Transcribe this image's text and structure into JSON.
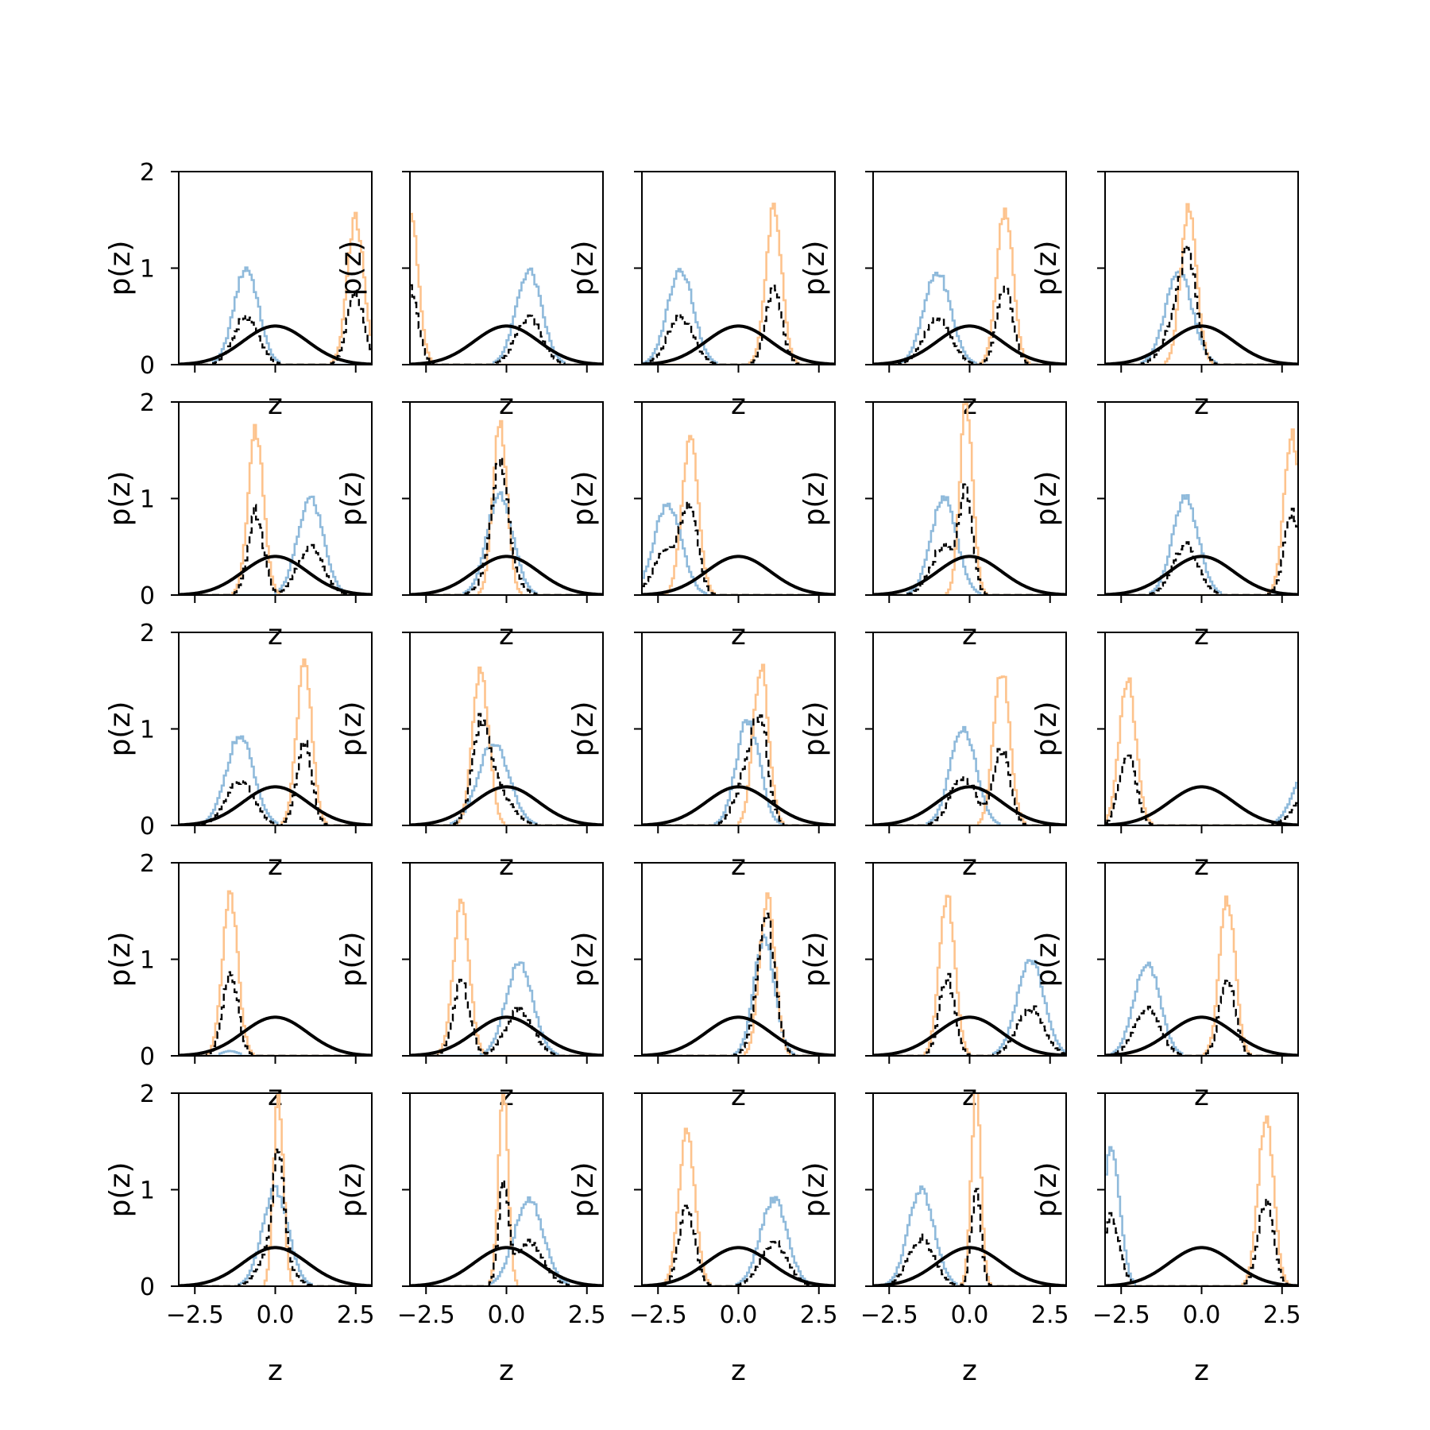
{
  "chart_data": {
    "type": "histogram-grid",
    "rows": 5,
    "cols": 5,
    "xlabel": "z",
    "ylabel": "p(z)",
    "xlim": [
      -3.0,
      3.0
    ],
    "ylim": [
      0,
      2
    ],
    "xticks": [
      -2.5,
      0.0,
      2.5
    ],
    "xtick_labels": [
      "−2.5",
      "0.0",
      "2.5"
    ],
    "yticks": [
      0,
      1,
      2
    ],
    "ytick_labels": [
      "0",
      "1",
      "2"
    ],
    "grid": false,
    "legend": "none",
    "prior_curve": {
      "type": "standard-normal",
      "peak": 0.4,
      "color": "#000000"
    },
    "series_colors": {
      "blue": "#8fbadb",
      "orange": "#fdc38d",
      "mixture": "#000000"
    },
    "panels": [
      {
        "blue": [
          -0.9,
          0.38,
          1.0
        ],
        "orange": [
          2.5,
          0.26,
          1.5
        ]
      },
      {
        "blue": [
          0.7,
          0.4,
          0.97
        ],
        "orange": [
          -3.0,
          0.25,
          1.6
        ]
      },
      {
        "blue": [
          -1.8,
          0.4,
          1.0
        ],
        "orange": [
          1.1,
          0.25,
          1.6
        ]
      },
      {
        "blue": [
          -1.0,
          0.42,
          0.95
        ],
        "orange": [
          1.1,
          0.25,
          1.6
        ]
      },
      {
        "blue": [
          -0.7,
          0.42,
          0.95
        ],
        "orange": [
          -0.4,
          0.25,
          1.6
        ]
      },
      {
        "blue": [
          1.1,
          0.4,
          1.0
        ],
        "orange": [
          -0.6,
          0.24,
          1.7
        ]
      },
      {
        "blue": [
          -0.2,
          0.4,
          1.05
        ],
        "orange": [
          -0.2,
          0.22,
          1.8
        ]
      },
      {
        "blue": [
          -2.2,
          0.42,
          0.95
        ],
        "orange": [
          -1.5,
          0.25,
          1.65
        ]
      },
      {
        "blue": [
          -0.8,
          0.4,
          1.0
        ],
        "orange": [
          -0.1,
          0.2,
          2.0
        ]
      },
      {
        "blue": [
          -0.5,
          0.4,
          1.0
        ],
        "orange": [
          2.8,
          0.24,
          1.65
        ]
      },
      {
        "blue": [
          -1.1,
          0.43,
          0.92
        ],
        "orange": [
          0.9,
          0.24,
          1.65
        ]
      },
      {
        "blue": [
          -0.4,
          0.48,
          0.85
        ],
        "orange": [
          -0.8,
          0.25,
          1.6
        ]
      },
      {
        "blue": [
          0.3,
          0.36,
          1.1
        ],
        "orange": [
          0.7,
          0.24,
          1.65
        ]
      },
      {
        "blue": [
          -0.2,
          0.4,
          1.02
        ],
        "orange": [
          1.0,
          0.25,
          1.62
        ]
      },
      {
        "blue": [
          3.2,
          0.4,
          0.5
        ],
        "orange": [
          -2.3,
          0.26,
          1.5
        ]
      },
      {
        "blue": [
          -1.4,
          0.25,
          0.05
        ],
        "orange": [
          -1.4,
          0.24,
          1.65
        ]
      },
      {
        "blue": [
          0.4,
          0.42,
          0.95
        ],
        "orange": [
          -1.4,
          0.25,
          1.58
        ]
      },
      {
        "blue": [
          0.8,
          0.32,
          1.22
        ],
        "orange": [
          0.9,
          0.24,
          1.65
        ]
      },
      {
        "blue": [
          1.9,
          0.42,
          1.0
        ],
        "orange": [
          -0.7,
          0.24,
          1.65
        ]
      },
      {
        "blue": [
          -1.7,
          0.4,
          0.97
        ],
        "orange": [
          0.8,
          0.24,
          1.65
        ]
      },
      {
        "blue": [
          0.0,
          0.4,
          1.0
        ],
        "orange": [
          0.1,
          0.15,
          2.0
        ]
      },
      {
        "blue": [
          0.7,
          0.45,
          0.9
        ],
        "orange": [
          -0.1,
          0.15,
          2.0
        ]
      },
      {
        "blue": [
          1.1,
          0.42,
          0.9
        ],
        "orange": [
          -1.6,
          0.25,
          1.6
        ]
      },
      {
        "blue": [
          -1.5,
          0.4,
          1.0
        ],
        "orange": [
          0.2,
          0.15,
          2.0
        ]
      },
      {
        "blue": [
          -2.8,
          0.26,
          1.45
        ],
        "orange": [
          2.0,
          0.24,
          1.75
        ]
      }
    ]
  }
}
